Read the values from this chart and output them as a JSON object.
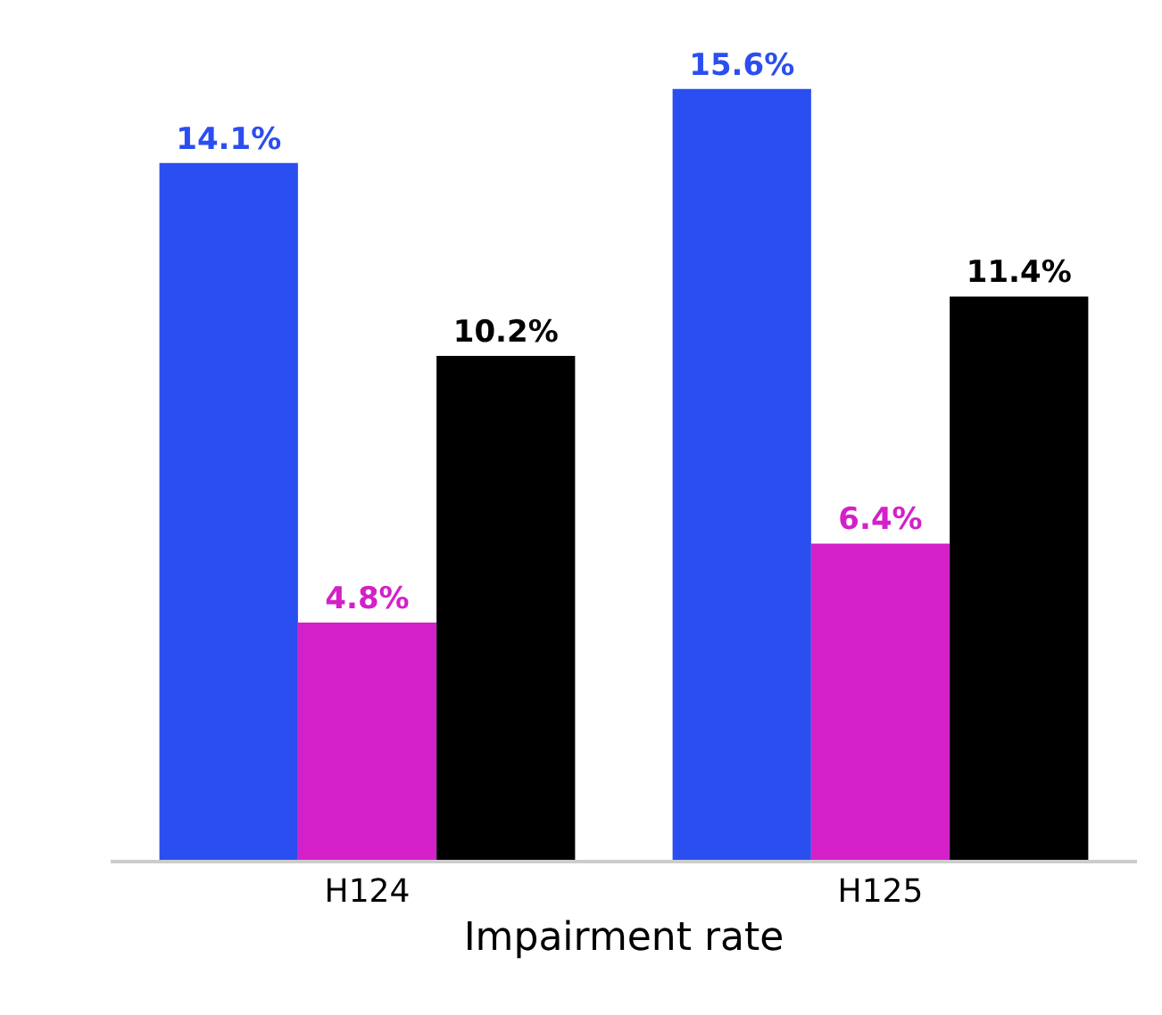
{
  "chart_data": {
    "type": "bar",
    "xlabel": "Impairment rate",
    "categories": [
      "H124",
      "H125"
    ],
    "ylim": [
      0,
      17.4
    ],
    "series": [
      {
        "color": "#2b4ef0",
        "values": [
          14.1,
          15.6
        ],
        "value_labels": [
          "14.1%",
          "15.6%"
        ]
      },
      {
        "color": "#d420c8",
        "values": [
          4.8,
          6.4
        ],
        "value_labels": [
          "4.8%",
          "6.4%"
        ]
      },
      {
        "color": "#000000",
        "values": [
          10.2,
          11.4
        ],
        "value_labels": [
          "10.2%",
          "11.4%"
        ]
      }
    ],
    "tick_labels": "x"
  }
}
